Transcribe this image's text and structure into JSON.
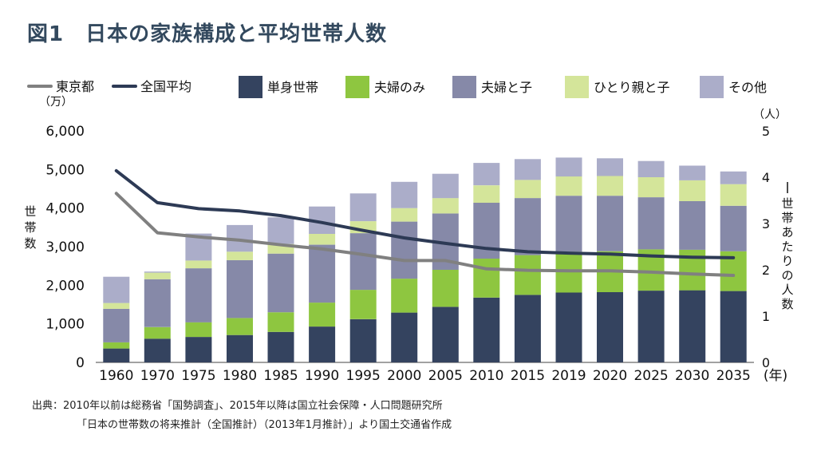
{
  "title": "図1　日本の家族構成と平均世帯人数",
  "chart_data": {
    "type": "bar",
    "categories": [
      "1960",
      "1970",
      "1975",
      "1980",
      "1985",
      "1990",
      "1995",
      "2000",
      "2005",
      "2010",
      "2015",
      "2019",
      "2020",
      "2025",
      "2030",
      "2035"
    ],
    "x_unit_label": "(年)",
    "stack_series": [
      {
        "name": "単身世帯",
        "color": "#34435f",
        "values": [
          360,
          615,
          660,
          710,
          790,
          930,
          1120,
          1290,
          1440,
          1680,
          1750,
          1810,
          1820,
          1860,
          1870,
          1850
        ]
      },
      {
        "name": "夫婦のみ",
        "color": "#8ec640",
        "values": [
          160,
          300,
          380,
          440,
          510,
          620,
          760,
          880,
          960,
          1010,
          1030,
          1060,
          1060,
          1070,
          1050,
          1030
        ]
      },
      {
        "name": "夫婦と子",
        "color": "#8689a8",
        "values": [
          870,
          1240,
          1400,
          1500,
          1520,
          1500,
          1470,
          1480,
          1460,
          1450,
          1480,
          1450,
          1440,
          1350,
          1260,
          1180
        ]
      },
      {
        "name": "ひとり親と子",
        "color": "#d4e59a",
        "values": [
          150,
          170,
          200,
          220,
          250,
          280,
          310,
          350,
          400,
          450,
          470,
          500,
          510,
          520,
          540,
          560
        ]
      },
      {
        "name": "その他",
        "color": "#abadc9",
        "values": [
          680,
          30,
          700,
          690,
          690,
          710,
          720,
          680,
          630,
          580,
          540,
          490,
          460,
          420,
          380,
          330
        ]
      }
    ],
    "line_series": [
      {
        "name": "東京都",
        "color": "#808080",
        "values": [
          3.65,
          2.8,
          2.71,
          2.64,
          2.54,
          2.45,
          2.33,
          2.2,
          2.2,
          2.02,
          1.99,
          1.98,
          1.98,
          1.95,
          1.91,
          1.88
        ]
      },
      {
        "name": "全国平均",
        "color": "#2d3a55",
        "values": [
          4.14,
          3.45,
          3.32,
          3.27,
          3.17,
          3.02,
          2.85,
          2.69,
          2.57,
          2.46,
          2.39,
          2.36,
          2.34,
          2.3,
          2.27,
          2.26
        ]
      }
    ],
    "y_left": {
      "label": "世帯数",
      "unit": "（万）",
      "ylim": [
        0,
        6000
      ],
      "ticks": [
        "0",
        "1,000",
        "2,000",
        "3,000",
        "4,000",
        "5,000",
        "6,000"
      ]
    },
    "y_right": {
      "label": "一世帯あたりの人数",
      "unit": "（人）",
      "ylim": [
        0,
        5
      ],
      "ticks": [
        "0",
        "1",
        "2",
        "3",
        "4",
        "5"
      ]
    },
    "legend_position": "top"
  },
  "source": {
    "line1": "出典：2010年以前は総務省「国勢調査」、2015年以降は国立社会保障・人口問題研究所",
    "line2": "「日本の世帯数の将来推計（全国推計）（2013年1月推計）」より国土交通省作成"
  }
}
